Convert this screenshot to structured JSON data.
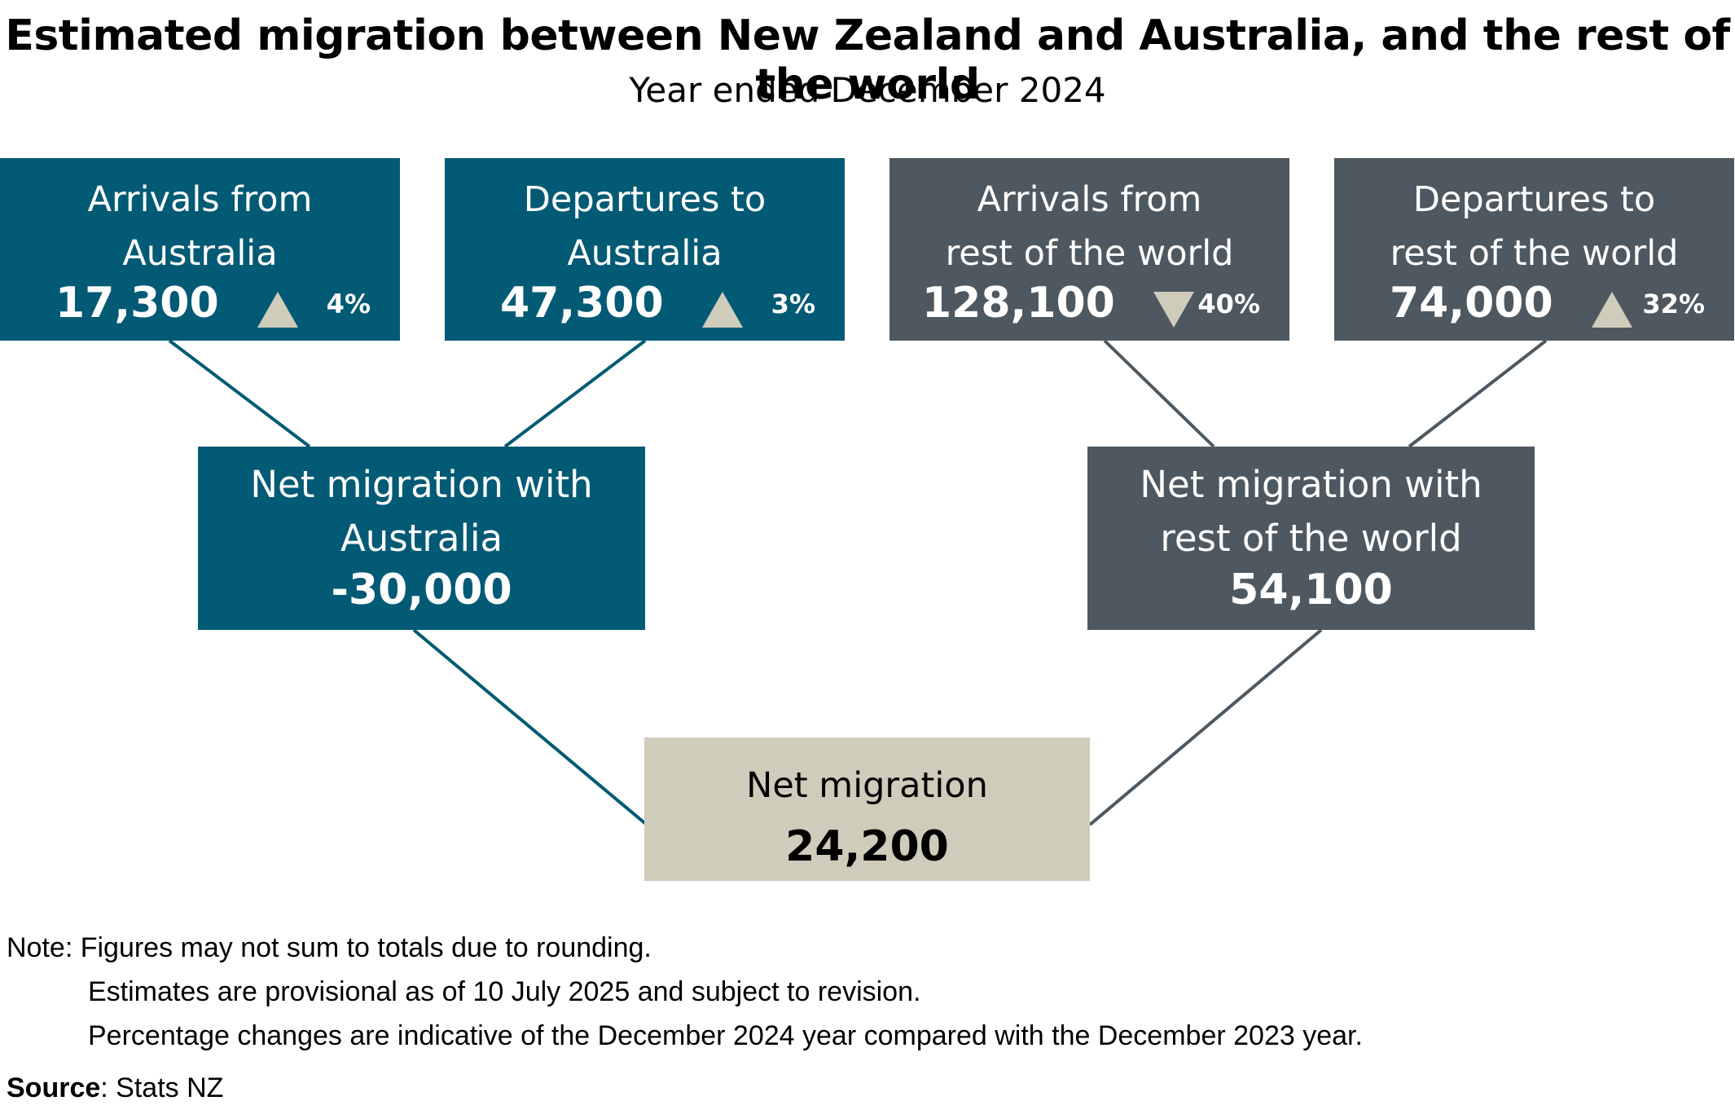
{
  "title": "Estimated migration between New Zealand and Australia, and the rest of the world",
  "subtitle": "Year ended December 2024",
  "boxes": {
    "arrivals_aus": {
      "label_line1": "Arrivals from",
      "label_line2": "Australia",
      "value": "17,300",
      "change": "4%",
      "direction": "up"
    },
    "departures_aus": {
      "label_line1": "Departures to",
      "label_line2": "Australia",
      "value": "47,300",
      "change": "3%",
      "direction": "up"
    },
    "arrivals_row": {
      "label_line1": "Arrivals from",
      "label_line2": "rest of the world",
      "value": "128,100",
      "change": "40%",
      "direction": "down"
    },
    "departures_row": {
      "label_line1": "Departures to",
      "label_line2": "rest of the world",
      "value": "74,000",
      "change": "32%",
      "direction": "up"
    },
    "net_aus": {
      "label_line1": "Net migration with",
      "label_line2": "Australia",
      "value": "-30,000"
    },
    "net_row": {
      "label_line1": "Net migration with",
      "label_line2": "rest of the world",
      "value": "54,100"
    },
    "net_total": {
      "label": "Net migration",
      "value": "24,200"
    }
  },
  "colors": {
    "australia": "#025a75",
    "rest_of_world": "#4e5860",
    "total": "#cfccbb",
    "arrow": "#cfccbb"
  },
  "note": {
    "prefix": "Note:",
    "lines": [
      "Figures may not sum to totals due to rounding.",
      "Estimates are provisional as of 10 July 2025 and subject to revision.",
      "Percentage changes are indicative of the December 2024 year compared with the December 2023 year."
    ]
  },
  "source": {
    "label": "Source",
    "text": ": Stats NZ"
  }
}
